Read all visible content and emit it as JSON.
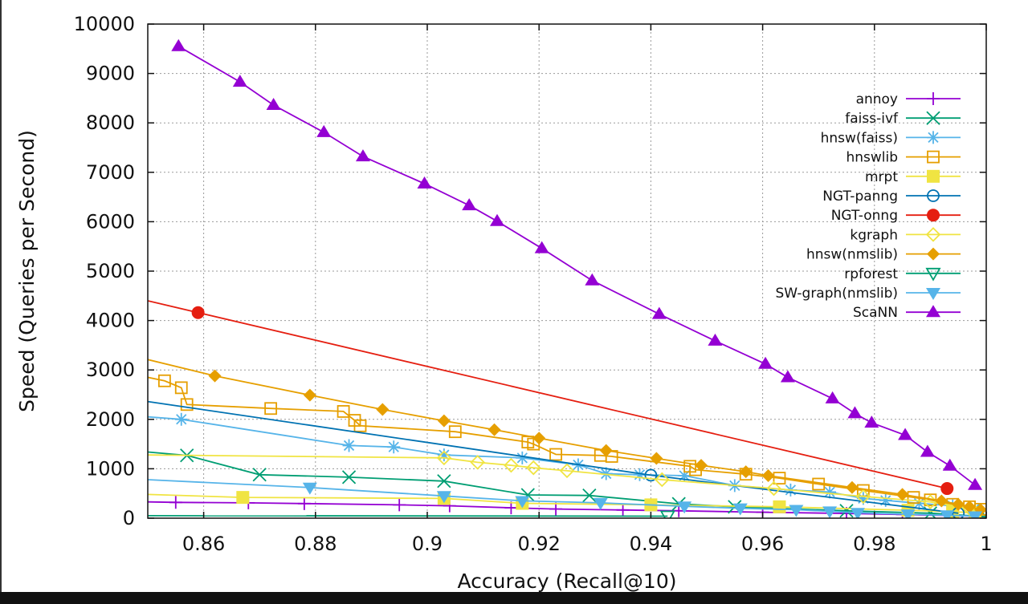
{
  "chart_data": {
    "type": "line",
    "xlabel": "Accuracy (Recall@10)",
    "ylabel": "Speed (Queries per Second)",
    "xlim": [
      0.85,
      1.0
    ],
    "ylim": [
      0,
      10000
    ],
    "xticks": [
      "0.86",
      "0.88",
      "0.9",
      "0.92",
      "0.94",
      "0.96",
      "0.98",
      "1"
    ],
    "xtick_values": [
      0.86,
      0.88,
      0.9,
      0.92,
      0.94,
      0.96,
      0.98,
      1.0
    ],
    "yticks": [
      "0",
      "1000",
      "2000",
      "3000",
      "4000",
      "5000",
      "6000",
      "7000",
      "8000",
      "9000",
      "10000"
    ],
    "ytick_values": [
      0,
      1000,
      2000,
      3000,
      4000,
      5000,
      6000,
      7000,
      8000,
      9000,
      10000
    ],
    "grid": true,
    "legend_position": "top-right",
    "series": [
      {
        "name": "annoy",
        "color": "#9400d3",
        "marker": "plus",
        "points": [
          [
            0.85,
            330
          ],
          [
            0.855,
            320
          ],
          [
            0.868,
            310
          ],
          [
            0.878,
            295
          ],
          [
            0.895,
            270
          ],
          [
            0.904,
            250
          ],
          [
            0.915,
            210
          ],
          [
            0.923,
            185
          ],
          [
            0.935,
            165
          ],
          [
            0.945,
            150
          ],
          [
            0.96,
            120
          ],
          [
            0.975,
            95
          ],
          [
            0.985,
            75
          ],
          [
            0.995,
            50
          ],
          [
            1.0,
            30
          ]
        ]
      },
      {
        "name": "faiss-ivf",
        "color": "#009e73",
        "marker": "x",
        "points": [
          [
            0.85,
            1340
          ],
          [
            0.857,
            1270
          ],
          [
            0.87,
            880
          ],
          [
            0.886,
            830
          ],
          [
            0.903,
            750
          ],
          [
            0.918,
            470
          ],
          [
            0.929,
            460
          ],
          [
            0.945,
            290
          ],
          [
            0.955,
            230
          ],
          [
            0.975,
            150
          ],
          [
            0.99,
            100
          ],
          [
            1.0,
            30
          ]
        ]
      },
      {
        "name": "hnsw(faiss)",
        "color": "#56b4e9",
        "marker": "asterisk",
        "points": [
          [
            0.85,
            2050
          ],
          [
            0.856,
            2000
          ],
          [
            0.886,
            1470
          ],
          [
            0.894,
            1440
          ],
          [
            0.903,
            1280
          ],
          [
            0.917,
            1220
          ],
          [
            0.927,
            1080
          ],
          [
            0.932,
            900
          ],
          [
            0.938,
            880
          ],
          [
            0.946,
            860
          ],
          [
            0.955,
            660
          ],
          [
            0.965,
            570
          ],
          [
            0.972,
            530
          ],
          [
            0.978,
            400
          ],
          [
            0.982,
            360
          ],
          [
            0.988,
            300
          ],
          [
            0.994,
            250
          ],
          [
            0.998,
            200
          ]
        ]
      },
      {
        "name": "hnswlib",
        "color": "#e69f00",
        "marker": "square-open",
        "points": [
          [
            0.85,
            2850
          ],
          [
            0.853,
            2780
          ],
          [
            0.856,
            2640
          ],
          [
            0.857,
            2300
          ],
          [
            0.872,
            2220
          ],
          [
            0.885,
            2160
          ],
          [
            0.887,
            1980
          ],
          [
            0.888,
            1870
          ],
          [
            0.905,
            1750
          ],
          [
            0.918,
            1540
          ],
          [
            0.919,
            1500
          ],
          [
            0.923,
            1290
          ],
          [
            0.931,
            1270
          ],
          [
            0.933,
            1250
          ],
          [
            0.947,
            1050
          ],
          [
            0.948,
            980
          ],
          [
            0.957,
            890
          ],
          [
            0.963,
            810
          ],
          [
            0.97,
            690
          ],
          [
            0.978,
            560
          ],
          [
            0.987,
            420
          ],
          [
            0.99,
            370
          ],
          [
            0.994,
            280
          ],
          [
            0.997,
            230
          ],
          [
            0.999,
            180
          ]
        ]
      },
      {
        "name": "mrpt",
        "color": "#f0e442",
        "marker": "square-filled",
        "points": [
          [
            0.85,
            480
          ],
          [
            0.867,
            420
          ],
          [
            0.903,
            400
          ],
          [
            0.917,
            300
          ],
          [
            0.94,
            270
          ],
          [
            0.963,
            230
          ],
          [
            0.986,
            160
          ],
          [
            0.994,
            130
          ],
          [
            0.998,
            110
          ]
        ]
      },
      {
        "name": "NGT-panng",
        "color": "#0072b2",
        "marker": "circle-open",
        "points": [
          [
            0.85,
            2360
          ],
          [
            0.94,
            870
          ],
          [
            0.995,
            100
          ]
        ]
      },
      {
        "name": "NGT-onng",
        "color": "#e51e10",
        "marker": "circle-filled",
        "points": [
          [
            0.85,
            4400
          ],
          [
            0.859,
            4160
          ],
          [
            0.993,
            600
          ]
        ]
      },
      {
        "name": "kgraph",
        "color": "#f0e442",
        "marker": "diamond-open",
        "points": [
          [
            0.85,
            1280
          ],
          [
            0.903,
            1220
          ],
          [
            0.909,
            1130
          ],
          [
            0.915,
            1070
          ],
          [
            0.919,
            1020
          ],
          [
            0.925,
            960
          ],
          [
            0.942,
            780
          ],
          [
            0.962,
            600
          ],
          [
            0.978,
            440
          ],
          [
            0.99,
            330
          ],
          [
            0.997,
            200
          ]
        ]
      },
      {
        "name": "hnsw(nmslib)",
        "color": "#e69f00",
        "marker": "diamond-filled",
        "points": [
          [
            0.85,
            3210
          ],
          [
            0.862,
            2880
          ],
          [
            0.879,
            2490
          ],
          [
            0.892,
            2200
          ],
          [
            0.903,
            1970
          ],
          [
            0.912,
            1790
          ],
          [
            0.92,
            1620
          ],
          [
            0.932,
            1370
          ],
          [
            0.941,
            1210
          ],
          [
            0.949,
            1070
          ],
          [
            0.957,
            940
          ],
          [
            0.961,
            860
          ],
          [
            0.976,
            620
          ],
          [
            0.985,
            480
          ],
          [
            0.992,
            350
          ],
          [
            0.995,
            280
          ],
          [
            0.997,
            230
          ],
          [
            0.999,
            170
          ]
        ]
      },
      {
        "name": "rpforest",
        "color": "#009e73",
        "marker": "triangle-down-open",
        "points": [
          [
            0.85,
            50
          ],
          [
            0.943,
            40
          ]
        ]
      },
      {
        "name": "SW-graph(nmslib)",
        "color": "#56b4e9",
        "marker": "triangle-down-filled",
        "points": [
          [
            0.85,
            780
          ],
          [
            0.879,
            620
          ],
          [
            0.903,
            450
          ],
          [
            0.917,
            350
          ],
          [
            0.931,
            310
          ],
          [
            0.946,
            240
          ],
          [
            0.956,
            200
          ],
          [
            0.966,
            170
          ],
          [
            0.972,
            140
          ],
          [
            0.977,
            110
          ],
          [
            0.986,
            80
          ],
          [
            0.993,
            60
          ],
          [
            0.998,
            40
          ]
        ]
      },
      {
        "name": "ScaNN",
        "color": "#9400d3",
        "marker": "triangle-up-filled",
        "points": [
          [
            0.8555,
            9550
          ],
          [
            0.8665,
            8830
          ],
          [
            0.8725,
            8360
          ],
          [
            0.8815,
            7810
          ],
          [
            0.8885,
            7320
          ],
          [
            0.8995,
            6770
          ],
          [
            0.9075,
            6330
          ],
          [
            0.9125,
            6010
          ],
          [
            0.9205,
            5460
          ],
          [
            0.9295,
            4810
          ],
          [
            0.9415,
            4130
          ],
          [
            0.9515,
            3590
          ],
          [
            0.9605,
            3120
          ],
          [
            0.9645,
            2850
          ],
          [
            0.9725,
            2420
          ],
          [
            0.9765,
            2120
          ],
          [
            0.9795,
            1930
          ],
          [
            0.9855,
            1680
          ],
          [
            0.9895,
            1340
          ],
          [
            0.9935,
            1060
          ],
          [
            0.998,
            670
          ]
        ]
      }
    ]
  }
}
